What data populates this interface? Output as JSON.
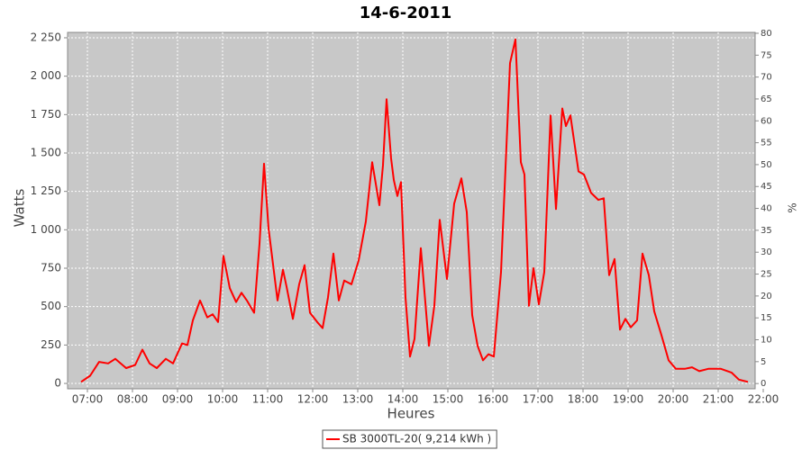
{
  "chart_data": {
    "type": "line",
    "title": "14-6-2011",
    "x_label": "Heures",
    "y_label": "Watts",
    "y2_label": "%",
    "x": [
      6.86,
      7.06,
      7.26,
      7.46,
      7.62,
      7.86,
      8.06,
      8.22,
      8.38,
      8.54,
      8.74,
      8.9,
      9.1,
      9.22,
      9.34,
      9.5,
      9.66,
      9.78,
      9.9,
      10.02,
      10.16,
      10.3,
      10.42,
      10.54,
      10.7,
      10.82,
      10.92,
      11.02,
      11.22,
      11.34,
      11.42,
      11.56,
      11.7,
      11.82,
      11.94,
      12.1,
      12.22,
      12.34,
      12.46,
      12.58,
      12.7,
      12.86,
      13.02,
      13.18,
      13.32,
      13.42,
      13.48,
      13.56,
      13.64,
      13.74,
      13.8,
      13.88,
      13.96,
      14.06,
      14.16,
      14.26,
      14.4,
      14.46,
      14.58,
      14.7,
      14.82,
      14.98,
      15.14,
      15.3,
      15.42,
      15.54,
      15.66,
      15.78,
      15.9,
      16.02,
      16.18,
      16.38,
      16.5,
      16.62,
      16.7,
      16.8,
      16.9,
      17.02,
      17.14,
      17.28,
      17.4,
      17.54,
      17.62,
      17.72,
      17.9,
      18.02,
      18.18,
      18.34,
      18.46,
      18.58,
      18.7,
      18.82,
      18.94,
      19.06,
      19.2,
      19.32,
      19.46,
      19.58,
      19.74,
      19.9,
      20.06,
      20.26,
      20.42,
      20.58,
      20.78,
      21.06,
      21.3,
      21.46,
      21.66
    ],
    "series": [
      {
        "name": "SB 3000TL-20( 9,214 kWh )",
        "color": "#ff0000",
        "values": [
          10,
          50,
          140,
          130,
          160,
          100,
          120,
          220,
          130,
          100,
          160,
          130,
          260,
          250,
          410,
          540,
          430,
          450,
          400,
          830,
          620,
          530,
          590,
          540,
          460,
          910,
          1430,
          1010,
          540,
          740,
          630,
          420,
          645,
          770,
          460,
          400,
          360,
          560,
          845,
          540,
          670,
          645,
          800,
          1055,
          1440,
          1265,
          1160,
          1420,
          1850,
          1465,
          1325,
          1220,
          1310,
          560,
          175,
          290,
          880,
          670,
          245,
          505,
          1065,
          680,
          1170,
          1335,
          1115,
          445,
          245,
          150,
          190,
          175,
          725,
          2085,
          2240,
          1440,
          1360,
          505,
          750,
          515,
          725,
          1745,
          1135,
          1790,
          1675,
          1745,
          1380,
          1360,
          1240,
          1195,
          1205,
          705,
          810,
          350,
          420,
          365,
          410,
          845,
          705,
          470,
          315,
          150,
          95,
          95,
          105,
          80,
          95,
          95,
          70,
          25,
          10
        ]
      }
    ],
    "xlim": [
      6.56,
      21.82
    ],
    "xticks": [
      {
        "value": 7,
        "label": "07:00"
      },
      {
        "value": 8,
        "label": "08:00"
      },
      {
        "value": 9,
        "label": "09:00"
      },
      {
        "value": 10,
        "label": "10:00"
      },
      {
        "value": 11,
        "label": "11:00"
      },
      {
        "value": 12,
        "label": "12:00"
      },
      {
        "value": 13,
        "label": "13:00"
      },
      {
        "value": 14,
        "label": "14:00"
      },
      {
        "value": 15,
        "label": "15:00"
      },
      {
        "value": 16,
        "label": "16:00"
      },
      {
        "value": 17,
        "label": "17:00"
      },
      {
        "value": 18,
        "label": "18:00"
      },
      {
        "value": 19,
        "label": "19:00"
      },
      {
        "value": 20,
        "label": "20:00"
      },
      {
        "value": 21,
        "label": "21:00"
      },
      {
        "value": 22,
        "label": "22:00"
      }
    ],
    "ylim": [
      -35,
      2285
    ],
    "yticks": [
      0,
      250,
      500,
      750,
      {
        "value": 1000,
        "label": "1 000"
      },
      {
        "value": 1250,
        "label": "1 250"
      },
      {
        "value": 1500,
        "label": "1 500"
      },
      {
        "value": 1750,
        "label": "1 750"
      },
      {
        "value": 2000,
        "label": "2 000"
      },
      {
        "value": 2250,
        "label": "2 250"
      }
    ],
    "y2lim": [
      -1.2,
      80.2
    ],
    "y2ticks": [
      0,
      5,
      10,
      15,
      20,
      25,
      30,
      35,
      40,
      45,
      50,
      55,
      60,
      65,
      70,
      75,
      80
    ],
    "grid": true
  }
}
